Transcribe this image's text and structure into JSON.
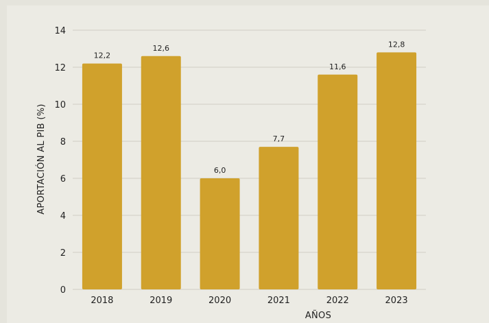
{
  "chart_data": {
    "type": "bar",
    "title": "",
    "xlabel": "AÑOS",
    "ylabel": "APORTACIÓN AL PIB (%)",
    "categories": [
      "2018",
      "2019",
      "2020",
      "2021",
      "2022",
      "2023"
    ],
    "values": [
      12.2,
      12.6,
      6.0,
      7.7,
      11.6,
      12.8
    ],
    "value_labels": [
      "12,2",
      "12,6",
      "6,0",
      "7,7",
      "11,6",
      "12,8"
    ],
    "ylim": [
      0,
      14
    ],
    "yticks": [
      0,
      2,
      4,
      6,
      8,
      10,
      12,
      14
    ],
    "grid": true,
    "legend": "none",
    "colors": {
      "bar": "#d0a12c",
      "grid": "#cfcdc4",
      "background": "#ecebe4"
    }
  }
}
